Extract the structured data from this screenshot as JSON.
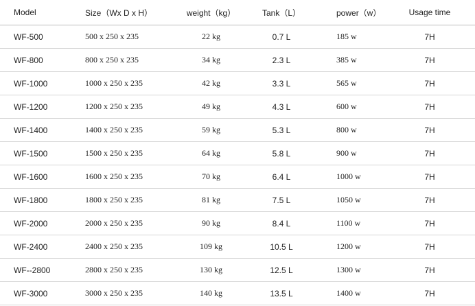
{
  "table": {
    "header": [
      "Model",
      "Size（Wx D x H）",
      "weight（kg）",
      "Tank（L）",
      "power（w）",
      "Usage time"
    ],
    "rows": [
      [
        "WF-500",
        "500 x 250 x 235",
        "22 kg",
        "0.7 L",
        "185 w",
        "7H"
      ],
      [
        "WF-800",
        "800 x 250 x 235",
        "34 kg",
        "2.3 L",
        "385 w",
        "7H"
      ],
      [
        "WF-1000",
        "1000 x 250 x 235",
        "42 kg",
        "3.3 L",
        "565 w",
        "7H"
      ],
      [
        "WF-1200",
        "1200 x 250 x 235",
        "49 kg",
        "4.3 L",
        "600 w",
        "7H"
      ],
      [
        "WF-1400",
        "1400 x 250 x 235",
        "59 kg",
        "5.3 L",
        "800 w",
        "7H"
      ],
      [
        "WF-1500",
        "1500 x 250 x 235",
        "64 kg",
        "5.8 L",
        "900 w",
        "7H"
      ],
      [
        "WF-1600",
        "1600 x 250 x 235",
        "70 kg",
        "6.4 L",
        "1000 w",
        "7H"
      ],
      [
        "WF-1800",
        "1800 x 250 x 235",
        "81 kg",
        "7.5 L",
        "1050 w",
        "7H"
      ],
      [
        "WF-2000",
        "2000 x 250 x 235",
        "90 kg",
        "8.4 L",
        "1100 w",
        "7H"
      ],
      [
        "WF-2400",
        "2400 x 250 x 235",
        "109 kg",
        "10.5 L",
        "1200 w",
        "7H"
      ],
      [
        "WF--2800",
        "2800 x 250 x 235",
        "130 kg",
        "12.5 L",
        "1300 w",
        "7H"
      ],
      [
        "WF-3000",
        "3000 x 250 x 235",
        "140 kg",
        "13.5 L",
        "1400 w",
        "7H"
      ]
    ]
  }
}
